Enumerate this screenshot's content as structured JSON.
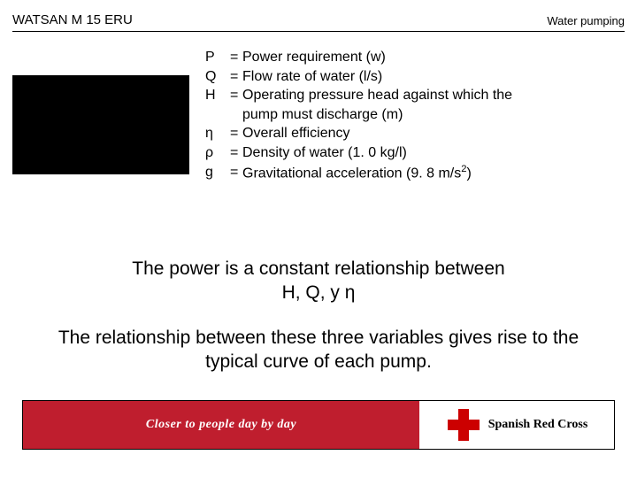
{
  "header": {
    "left": "WATSAN M 15 ERU",
    "right": "Water pumping"
  },
  "definitions": [
    {
      "sym": "P",
      "txt": "Power requirement (w)"
    },
    {
      "sym": "Q",
      "txt": "Flow rate of water (l/s)"
    },
    {
      "sym": "H",
      "txt": "Operating pressure head against which the"
    },
    {
      "sym": "",
      "txt": "pump must discharge (m)",
      "indent": true
    },
    {
      "sym": "η",
      "txt": "Overall efficiency"
    },
    {
      "sym": "ρ",
      "txt": "Density of water (1. 0 kg/l)"
    },
    {
      "sym": "g",
      "txt": "Gravitational acceleration (9. 8 m/s",
      "sup": "2",
      "tail": ")"
    }
  ],
  "body": {
    "line1a": "The power is a constant relationship between",
    "line1b": "H, Q, y η",
    "line2a": "The relationship between these three variables gives rise to the",
    "line2b": "typical curve of each pump."
  },
  "footer": {
    "slogan": "Closer to people day by day",
    "org": "Spanish Red Cross"
  },
  "colors": {
    "footer_red": "#bf1e2e",
    "cross_red": "#cc0000",
    "black": "#000000",
    "white": "#ffffff"
  }
}
